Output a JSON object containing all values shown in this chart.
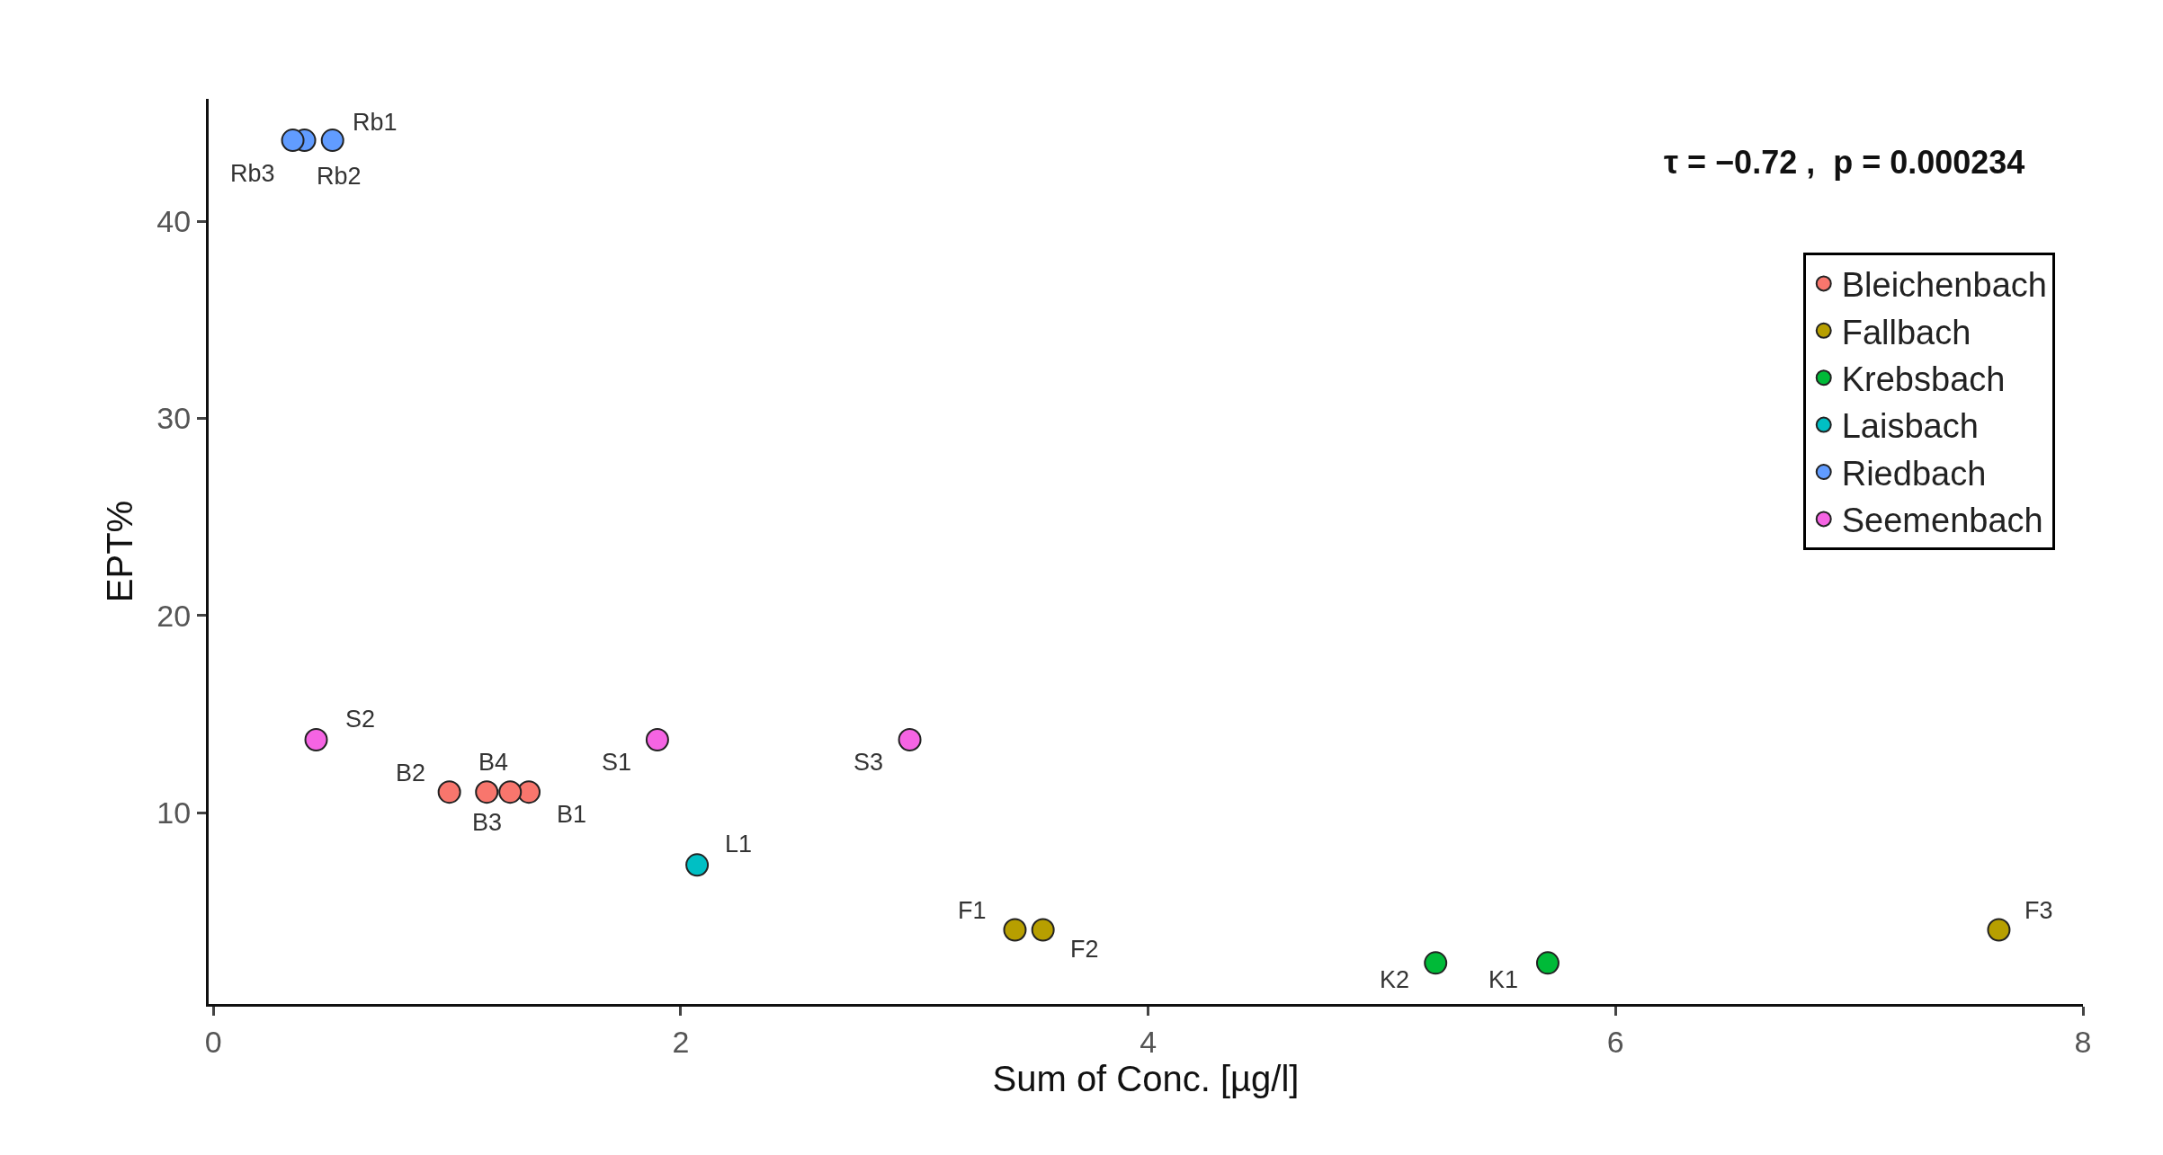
{
  "chart_data": {
    "type": "scatter",
    "xlabel": "Sum of Conc. [µg/l]",
    "ylabel": "EPT%",
    "xlim": [
      -0.02,
      8
    ],
    "xticks": [
      0,
      2,
      4,
      6,
      8
    ],
    "ylim": [
      0.3,
      46.2
    ],
    "yticks": [
      10,
      20,
      30,
      40
    ],
    "grid": false,
    "legend": "top right",
    "marker": "circle",
    "series": [
      {
        "name": "Bleichenbach",
        "color": "#f8766d",
        "x": [
          1.35,
          1.01,
          1.17,
          1.27
        ],
        "values": [
          11.05,
          11.05,
          11.05,
          11.05
        ]
      },
      {
        "name": "Fallbach",
        "color": "#b79f00",
        "x": [
          3.43,
          3.55,
          7.64
        ],
        "values": [
          4.06,
          4.06,
          4.06
        ]
      },
      {
        "name": "Krebsbach",
        "color": "#00ba38",
        "x": [
          5.71,
          5.23
        ],
        "values": [
          2.38,
          2.38
        ]
      },
      {
        "name": "Laisbach",
        "color": "#00bfc4",
        "x": [
          2.07
        ],
        "values": [
          7.35
        ]
      },
      {
        "name": "Riedbach",
        "color": "#619cff",
        "x": [
          0.51,
          0.39,
          0.34
        ],
        "values": [
          44.1,
          44.1,
          44.1
        ]
      },
      {
        "name": "Seemenbach",
        "color": "#f564e3",
        "x": [
          1.9,
          0.44,
          2.98
        ],
        "values": [
          13.7,
          13.7,
          13.7
        ]
      }
    ],
    "annotations": [
      "τ = −0.72 ,  p = 0.000234",
      {
        "text": "Rb1",
        "x": 0.51,
        "y": 44.1
      },
      {
        "text": "Rb2",
        "x": 0.39,
        "y": 44.1
      },
      {
        "text": "Rb3",
        "x": 0.34,
        "y": 44.1
      },
      {
        "text": "S2",
        "x": 0.44,
        "y": 13.7
      },
      {
        "text": "B1",
        "x": 1.35,
        "y": 11.05
      },
      {
        "text": "B2",
        "x": 1.01,
        "y": 11.05
      },
      {
        "text": "B3",
        "x": 1.17,
        "y": 11.05
      },
      {
        "text": "B4",
        "x": 1.27,
        "y": 11.05
      },
      {
        "text": "S1",
        "x": 1.9,
        "y": 13.7
      },
      {
        "text": "L1",
        "x": 2.07,
        "y": 7.35
      },
      {
        "text": "S3",
        "x": 2.98,
        "y": 13.7
      },
      {
        "text": "F1",
        "x": 3.43,
        "y": 4.06
      },
      {
        "text": "F2",
        "x": 3.55,
        "y": 4.06
      },
      {
        "text": "F3",
        "x": 7.64,
        "y": 4.06
      },
      {
        "text": "K1",
        "x": 5.71,
        "y": 2.38
      },
      {
        "text": "K2",
        "x": 5.23,
        "y": 2.38
      }
    ]
  }
}
